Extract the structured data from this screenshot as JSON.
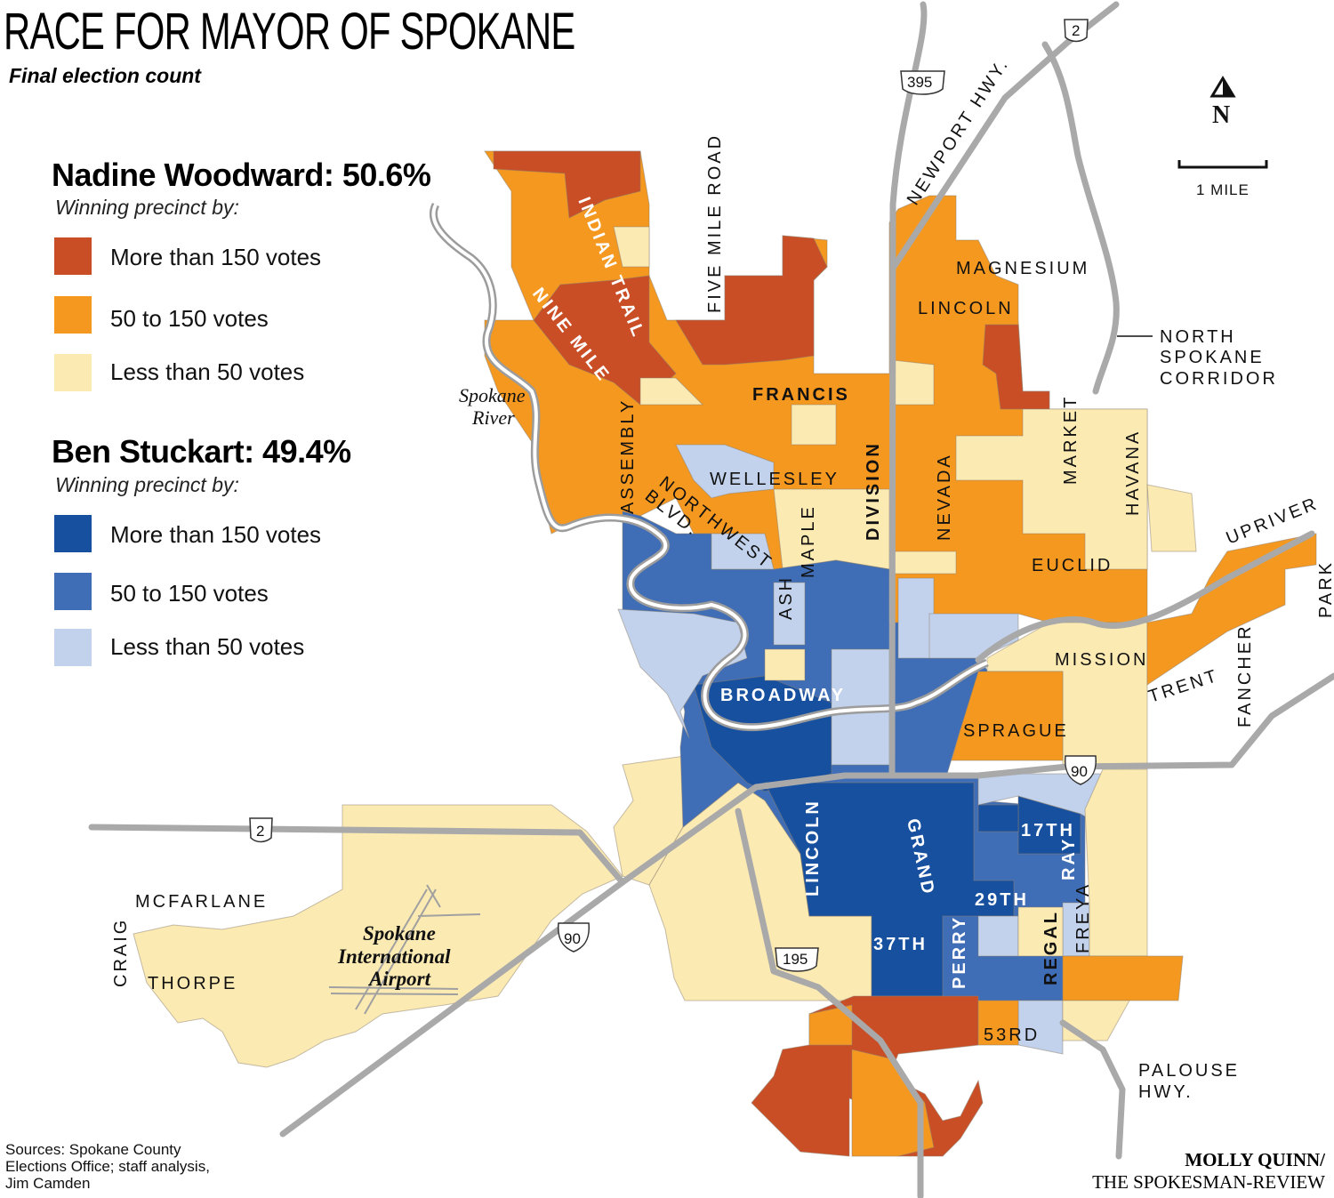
{
  "header": {
    "title": "RACE FOR MAYOR OF SPOKANE",
    "subtitle": "Final election count"
  },
  "legend": {
    "woodward": {
      "title": "Nadine Woodward: 50.6%",
      "winning_by": "Winning precinct by:",
      "items": [
        {
          "label": "More than 150 votes",
          "color": "#C94E26"
        },
        {
          "label": "50 to 150 votes",
          "color": "#F5981F"
        },
        {
          "label": "Less than 50 votes",
          "color": "#FCEAB3"
        }
      ]
    },
    "stuckart": {
      "title": "Ben Stuckart: 49.4%",
      "winning_by": "Winning precinct by:",
      "items": [
        {
          "label": "More than 150 votes",
          "color": "#17509F"
        },
        {
          "label": "50 to 150 votes",
          "color": "#3F6DB6"
        },
        {
          "label": "Less than 50 votes",
          "color": "#C2D2EC"
        }
      ]
    }
  },
  "compass": {
    "label": "N"
  },
  "scale": {
    "label": "1 MILE"
  },
  "streets": {
    "indian_trail": "INDIAN TRAIL",
    "nine_mile": "NINE MILE",
    "five_mile": "FIVE MILE ROAD",
    "newport": "NEWPORT HWY.",
    "magnesium": "MAGNESIUM",
    "lincoln_n": "LINCOLN",
    "nsc_1": "NORTH",
    "nsc_2": "SPOKANE",
    "nsc_3": "CORRIDOR",
    "francis": "FRANCIS",
    "assembly": "ASSEMBLY",
    "wellesley": "WELLESLEY",
    "division": "DIVISION",
    "nevada": "NEVADA",
    "market": "MARKET",
    "havana": "HAVANA",
    "nw_blvd_1": "NORTHWEST",
    "nw_blvd_2": "BLVD.",
    "maple": "MAPLE",
    "ash": "ASH",
    "euclid": "EUCLID",
    "upriver": "UPRIVER",
    "park": "PARK",
    "mission": "MISSION",
    "trent": "TRENT",
    "fancher": "FANCHER",
    "broadway": "BROADWAY",
    "sprague": "SPRAGUE",
    "lincoln_s": "LINCOLN",
    "grand": "GRAND",
    "seventeenth": "17TH",
    "ray": "RAY",
    "twentyninth": "29TH",
    "freya": "FREYA",
    "regal": "REGAL",
    "perry": "PERRY",
    "thirtyseventh": "37TH",
    "fiftythird": "53RD",
    "palouse_1": "PALOUSE",
    "palouse_2": "HWY.",
    "mcfarlane": "MCFARLANE",
    "craig": "CRAIG",
    "thorpe": "THORPE"
  },
  "places": {
    "river_1": "Spokane",
    "river_2": "River",
    "airport_1": "Spokane",
    "airport_2": "International",
    "airport_3": "Airport"
  },
  "shields": {
    "us395": "395",
    "us2_north": "2",
    "us2_west": "2",
    "i90_east": "90",
    "i90_west": "90",
    "us195": "195"
  },
  "footer": {
    "sources": "Sources: Spokane County Elections Office; staff analysis, Jim Camden",
    "credit_name": "MOLLY QUINN/",
    "credit_org": "THE SPOKESMAN-REVIEW"
  }
}
